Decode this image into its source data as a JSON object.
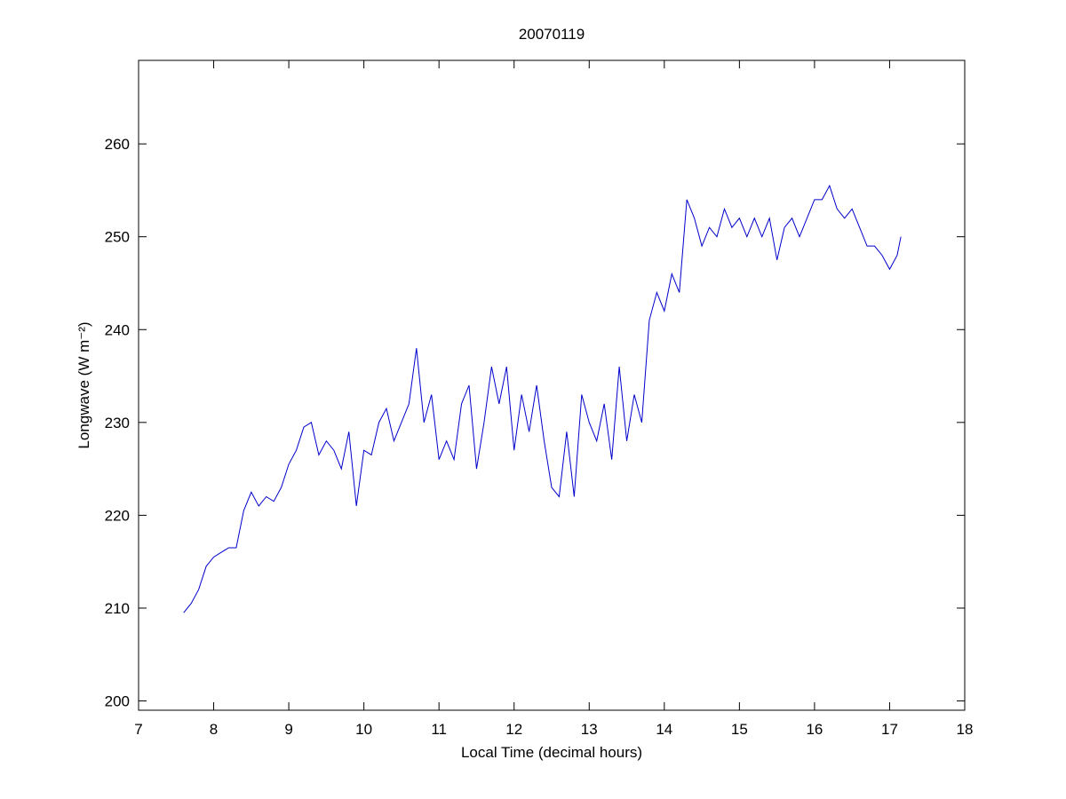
{
  "chart_data": {
    "type": "line",
    "title": "20070119",
    "xlabel": "Local Time (decimal hours)",
    "ylabel": "Longwave (W m⁻²)",
    "xlim": [
      7,
      18
    ],
    "xticks": [
      7,
      8,
      9,
      10,
      11,
      12,
      13,
      14,
      15,
      16,
      17,
      18
    ],
    "ylim": [
      199,
      269
    ],
    "yticks": [
      200,
      210,
      220,
      230,
      240,
      250,
      260
    ],
    "grid": false,
    "series": [
      {
        "color": "#0000cc",
        "x": [
          7.6,
          7.7,
          7.8,
          7.9,
          8.0,
          8.1,
          8.2,
          8.3,
          8.4,
          8.5,
          8.6,
          8.7,
          8.8,
          8.9,
          9.0,
          9.1,
          9.2,
          9.3,
          9.4,
          9.5,
          9.6,
          9.7,
          9.8,
          9.9,
          10.0,
          10.1,
          10.2,
          10.3,
          10.4,
          10.5,
          10.6,
          10.7,
          10.8,
          10.9,
          11.0,
          11.1,
          11.2,
          11.3,
          11.4,
          11.5,
          11.6,
          11.7,
          11.8,
          11.9,
          12.0,
          12.1,
          12.2,
          12.3,
          12.4,
          12.5,
          12.6,
          12.7,
          12.8,
          12.9,
          13.0,
          13.1,
          13.2,
          13.3,
          13.4,
          13.5,
          13.6,
          13.7,
          13.8,
          13.9,
          14.0,
          14.1,
          14.2,
          14.3,
          14.4,
          14.5,
          14.6,
          14.7,
          14.8,
          14.9,
          15.0,
          15.1,
          15.2,
          15.3,
          15.4,
          15.5,
          15.6,
          15.7,
          15.8,
          15.9,
          16.0,
          16.1,
          16.2,
          16.3,
          16.4,
          16.5,
          16.6,
          16.7,
          16.8,
          16.9,
          17.0,
          17.1,
          17.15
        ],
        "values": [
          209.5,
          210.5,
          212,
          214.5,
          215.5,
          216,
          216.5,
          216.5,
          220.5,
          222.5,
          221,
          222,
          221.5,
          223,
          225.5,
          227,
          229.5,
          230,
          226.5,
          228,
          227,
          225,
          229,
          221,
          227,
          226.5,
          230,
          231.5,
          228,
          230,
          232,
          238,
          230,
          233,
          226,
          228,
          226,
          232,
          234,
          225,
          230,
          236,
          232,
          236,
          227,
          233,
          229,
          234,
          228,
          223,
          222,
          229,
          222,
          233,
          230,
          228,
          232,
          226,
          236,
          228,
          233,
          230,
          241,
          244,
          242,
          246,
          244,
          254,
          252,
          249,
          251,
          250,
          253,
          251,
          252,
          250,
          252,
          250,
          252,
          247.5,
          251,
          252,
          250,
          252,
          254,
          254,
          255.5,
          253,
          252,
          253,
          251,
          249,
          249,
          248,
          246.5,
          248,
          250
        ]
      }
    ]
  }
}
